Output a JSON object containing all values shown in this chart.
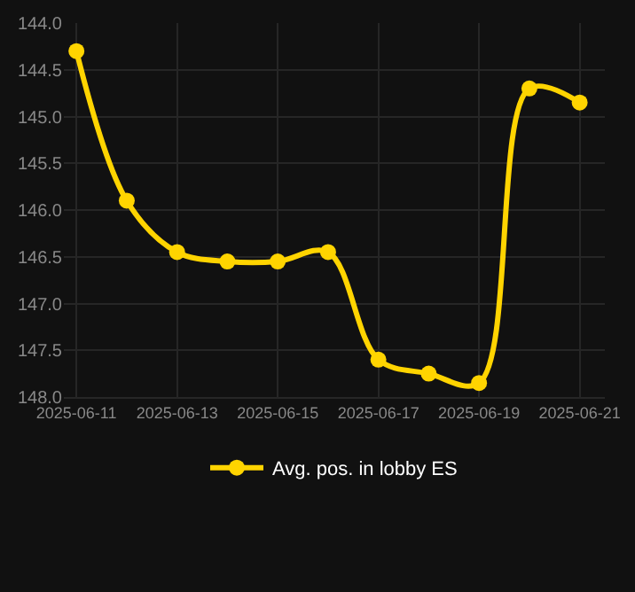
{
  "chart_data": {
    "type": "line",
    "x": [
      "2025-06-11",
      "2025-06-12",
      "2025-06-13",
      "2025-06-14",
      "2025-06-15",
      "2025-06-16",
      "2025-06-17",
      "2025-06-18",
      "2025-06-19",
      "2025-06-20",
      "2025-06-21"
    ],
    "series": [
      {
        "name": "Avg. pos. in lobby ES",
        "color": "#ffd400",
        "values": [
          144.3,
          145.9,
          146.45,
          146.55,
          146.55,
          146.45,
          147.6,
          147.75,
          147.85,
          144.7,
          144.85
        ]
      }
    ],
    "xlim": [
      "2025-06-10T18:00",
      "2025-06-21T12:00"
    ],
    "xticks": [
      "2025-06-11",
      "2025-06-13",
      "2025-06-15",
      "2025-06-17",
      "2025-06-19",
      "2025-06-21"
    ],
    "ylim": [
      148,
      144
    ],
    "yticks": [
      {
        "value": 144,
        "label": "144.0"
      },
      144.5,
      {
        "value": 145,
        "label": "145.0"
      },
      145.5,
      {
        "value": 146,
        "label": "146.0"
      },
      146.5,
      {
        "value": 147,
        "label": "147.0"
      },
      147.5,
      {
        "value": 148,
        "label": "148.0"
      }
    ],
    "grid": true,
    "legend": "bottom",
    "marker": "circle",
    "line_style": "solid"
  }
}
